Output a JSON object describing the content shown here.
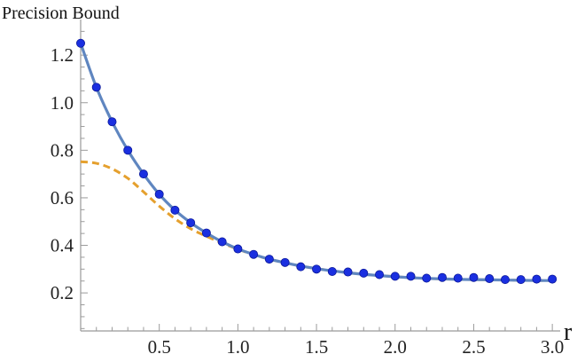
{
  "chart_data": {
    "type": "line",
    "title": "",
    "ylabel": "Precision Bound",
    "xlabel": "r",
    "xlim": [
      0,
      3.05
    ],
    "ylim": [
      0.04,
      1.32
    ],
    "x_ticks": [
      0.5,
      1.0,
      1.5,
      2.0,
      2.5,
      3.0
    ],
    "x_tick_labels": [
      "0.5",
      "1.0",
      "1.5",
      "2.0",
      "2.5",
      "3.0"
    ],
    "y_ticks": [
      0.2,
      0.4,
      0.6,
      0.8,
      1.0,
      1.2
    ],
    "y_tick_labels": [
      "0.2",
      "0.4",
      "0.6",
      "0.8",
      "1.0",
      "1.2"
    ],
    "grid": false,
    "legend": "none",
    "colors": {
      "solid_line": "#5f86c0",
      "dashed_line": "#e5a02e",
      "points": "#1a2fe0",
      "axis": "#9a9a9a"
    },
    "series": [
      {
        "kind": "solid",
        "x": [
          0,
          0.1,
          0.2,
          0.3,
          0.4,
          0.5,
          0.6,
          0.7,
          0.8,
          0.9,
          1.0,
          1.1,
          1.2,
          1.3,
          1.4,
          1.5,
          1.6,
          1.7,
          1.8,
          1.9,
          2.0,
          2.1,
          2.2,
          2.3,
          2.4,
          2.5,
          2.6,
          2.7,
          2.8,
          2.9,
          3.0
        ],
        "values": [
          1.25,
          1.065,
          0.92,
          0.8,
          0.7,
          0.615,
          0.548,
          0.495,
          0.452,
          0.415,
          0.385,
          0.362,
          0.342,
          0.327,
          0.313,
          0.302,
          0.293,
          0.285,
          0.278,
          0.273,
          0.268,
          0.264,
          0.261,
          0.259,
          0.257,
          0.256,
          0.255,
          0.254,
          0.253,
          0.252,
          0.252
        ]
      },
      {
        "kind": "dashed",
        "x": [
          0,
          0.1,
          0.2,
          0.3,
          0.4,
          0.5,
          0.6,
          0.7,
          0.8,
          0.9,
          1.0,
          1.1,
          1.2,
          1.3,
          1.4,
          1.5,
          1.6,
          1.7,
          1.8,
          1.9,
          2.0,
          2.2,
          2.4,
          2.6,
          2.8,
          3.0
        ],
        "values": [
          0.752,
          0.745,
          0.722,
          0.682,
          0.625,
          0.565,
          0.512,
          0.47,
          0.438,
          0.41,
          0.384,
          0.361,
          0.342,
          0.327,
          0.313,
          0.302,
          0.293,
          0.285,
          0.278,
          0.273,
          0.268,
          0.261,
          0.257,
          0.255,
          0.253,
          0.252
        ]
      },
      {
        "kind": "points",
        "x": [
          0,
          0.1,
          0.2,
          0.3,
          0.4,
          0.5,
          0.6,
          0.7,
          0.8,
          0.9,
          1.0,
          1.1,
          1.2,
          1.3,
          1.4,
          1.5,
          1.6,
          1.7,
          1.8,
          1.9,
          2.0,
          2.1,
          2.2,
          2.3,
          2.4,
          2.5,
          2.6,
          2.7,
          2.8,
          2.9,
          3.0
        ],
        "values": [
          1.25,
          1.065,
          0.92,
          0.8,
          0.7,
          0.615,
          0.548,
          0.495,
          0.452,
          0.415,
          0.385,
          0.362,
          0.342,
          0.328,
          0.31,
          0.3,
          0.29,
          0.288,
          0.283,
          0.277,
          0.27,
          0.27,
          0.262,
          0.265,
          0.262,
          0.265,
          0.26,
          0.256,
          0.256,
          0.258,
          0.258
        ]
      }
    ]
  }
}
